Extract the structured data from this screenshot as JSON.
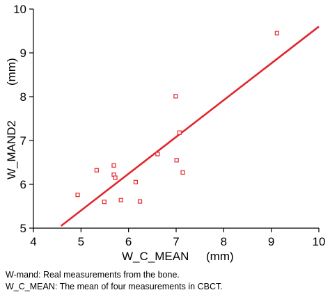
{
  "chart_data": {
    "type": "scatter",
    "xlabel": "W_C_MEAN",
    "xunit": "(mm)",
    "ylabel": "W_MAND2",
    "yunit": "(mm)",
    "xlim": [
      4,
      10
    ],
    "ylim": [
      5,
      10
    ],
    "xticks": [
      4,
      5,
      6,
      7,
      8,
      9,
      10
    ],
    "yticks": [
      5,
      6,
      7,
      8,
      9,
      10
    ],
    "grid": false,
    "marker_color": "#e8363c",
    "line_color": "#e0262d",
    "points": [
      {
        "x": 4.93,
        "y": 5.76
      },
      {
        "x": 5.33,
        "y": 6.32
      },
      {
        "x": 5.49,
        "y": 5.6
      },
      {
        "x": 5.69,
        "y": 6.43
      },
      {
        "x": 5.69,
        "y": 6.22
      },
      {
        "x": 5.72,
        "y": 6.15
      },
      {
        "x": 5.84,
        "y": 5.64
      },
      {
        "x": 6.15,
        "y": 6.05
      },
      {
        "x": 6.24,
        "y": 5.61
      },
      {
        "x": 6.61,
        "y": 6.69
      },
      {
        "x": 6.99,
        "y": 8.01
      },
      {
        "x": 7.01,
        "y": 6.55
      },
      {
        "x": 7.07,
        "y": 7.18
      },
      {
        "x": 7.14,
        "y": 6.27
      },
      {
        "x": 9.12,
        "y": 9.45
      }
    ],
    "fit_line": {
      "x": [
        4.58,
        10.0
      ],
      "y": [
        5.05,
        9.6
      ]
    }
  },
  "captions": {
    "line1": "W-mand: Real measurements from the bone.",
    "line2": "W_C_MEAN: The mean of four measurements in CBCT."
  }
}
